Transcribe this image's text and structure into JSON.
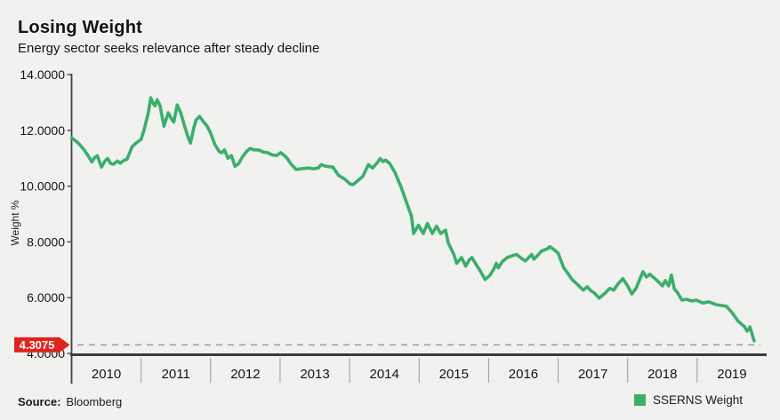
{
  "header": {
    "title": "Losing Weight",
    "subtitle": "Energy sector seeks relevance after steady decline"
  },
  "footer": {
    "source_label": "Source:",
    "source_value": "Bloomberg"
  },
  "legend": {
    "label": "SSERNS Weight",
    "swatch_color": "#3bae6c"
  },
  "colors": {
    "background": "#f1f1f0",
    "line": "#3bae6c",
    "badge": "#e0231e",
    "badge_text": "#ffffff",
    "axis": "#404040",
    "x_axis": "#3b3b3b",
    "text": "#141414",
    "separator": "#999999",
    "dashed": "#9b9b9b"
  },
  "chart_data": {
    "type": "line",
    "title": "Losing Weight",
    "subtitle": "Energy sector seeks relevance after steady decline",
    "ylabel": "Weight %",
    "ylim": [
      4,
      14
    ],
    "yticks": [
      {
        "value": 14,
        "label": "14.0000"
      },
      {
        "value": 12,
        "label": "12.0000"
      },
      {
        "value": 10,
        "label": "10.0000"
      },
      {
        "value": 8,
        "label": "8.0000"
      },
      {
        "value": 6,
        "label": "6.0000"
      },
      {
        "value": 4,
        "label": "4.0000"
      }
    ],
    "xlim": [
      2010,
      2020
    ],
    "xticks": [
      "2010",
      "2011",
      "2012",
      "2013",
      "2014",
      "2015",
      "2016",
      "2017",
      "2018",
      "2019"
    ],
    "grid": false,
    "legend_position": "bottom-right",
    "last_value": {
      "value": 4.3075,
      "label": "4.3075"
    },
    "series": [
      {
        "name": "SSERNS Weight",
        "color": "#3bae6c",
        "points": [
          [
            2010.0,
            11.73
          ],
          [
            2010.06,
            11.62
          ],
          [
            2010.12,
            11.48
          ],
          [
            2010.18,
            11.3
          ],
          [
            2010.24,
            11.08
          ],
          [
            2010.29,
            10.87
          ],
          [
            2010.33,
            11.02
          ],
          [
            2010.37,
            11.09
          ],
          [
            2010.43,
            10.68
          ],
          [
            2010.48,
            10.9
          ],
          [
            2010.52,
            10.99
          ],
          [
            2010.56,
            10.82
          ],
          [
            2010.6,
            10.78
          ],
          [
            2010.66,
            10.9
          ],
          [
            2010.7,
            10.82
          ],
          [
            2010.74,
            10.9
          ],
          [
            2010.8,
            10.97
          ],
          [
            2010.87,
            11.41
          ],
          [
            2010.93,
            11.55
          ],
          [
            2011.0,
            11.68
          ],
          [
            2011.04,
            12.0
          ],
          [
            2011.1,
            12.59
          ],
          [
            2011.14,
            13.17
          ],
          [
            2011.17,
            12.98
          ],
          [
            2011.2,
            12.88
          ],
          [
            2011.23,
            13.1
          ],
          [
            2011.27,
            12.9
          ],
          [
            2011.33,
            12.15
          ],
          [
            2011.39,
            12.63
          ],
          [
            2011.44,
            12.4
          ],
          [
            2011.47,
            12.3
          ],
          [
            2011.52,
            12.91
          ],
          [
            2011.57,
            12.63
          ],
          [
            2011.62,
            12.2
          ],
          [
            2011.67,
            11.8
          ],
          [
            2011.71,
            11.54
          ],
          [
            2011.76,
            12.1
          ],
          [
            2011.79,
            12.37
          ],
          [
            2011.84,
            12.5
          ],
          [
            2011.9,
            12.3
          ],
          [
            2011.95,
            12.15
          ],
          [
            2012.0,
            11.9
          ],
          [
            2012.06,
            11.5
          ],
          [
            2012.12,
            11.25
          ],
          [
            2012.16,
            11.19
          ],
          [
            2012.2,
            11.3
          ],
          [
            2012.25,
            11.0
          ],
          [
            2012.3,
            11.1
          ],
          [
            2012.35,
            10.71
          ],
          [
            2012.4,
            10.8
          ],
          [
            2012.46,
            11.05
          ],
          [
            2012.52,
            11.25
          ],
          [
            2012.57,
            11.35
          ],
          [
            2012.63,
            11.3
          ],
          [
            2012.69,
            11.3
          ],
          [
            2012.76,
            11.22
          ],
          [
            2012.82,
            11.2
          ],
          [
            2012.88,
            11.12
          ],
          [
            2012.95,
            11.1
          ],
          [
            2013.01,
            11.2
          ],
          [
            2013.06,
            11.1
          ],
          [
            2013.1,
            11.0
          ],
          [
            2013.16,
            10.78
          ],
          [
            2013.23,
            10.6
          ],
          [
            2013.3,
            10.62
          ],
          [
            2013.4,
            10.65
          ],
          [
            2013.48,
            10.62
          ],
          [
            2013.55,
            10.65
          ],
          [
            2013.59,
            10.77
          ],
          [
            2013.65,
            10.72
          ],
          [
            2013.69,
            10.7
          ],
          [
            2013.76,
            10.68
          ],
          [
            2013.84,
            10.39
          ],
          [
            2013.93,
            10.25
          ],
          [
            2014.01,
            10.07
          ],
          [
            2014.05,
            10.05
          ],
          [
            2014.12,
            10.2
          ],
          [
            2014.19,
            10.35
          ],
          [
            2014.27,
            10.77
          ],
          [
            2014.33,
            10.65
          ],
          [
            2014.4,
            10.85
          ],
          [
            2014.44,
            10.99
          ],
          [
            2014.48,
            10.88
          ],
          [
            2014.52,
            10.93
          ],
          [
            2014.58,
            10.8
          ],
          [
            2014.65,
            10.5
          ],
          [
            2014.74,
            9.97
          ],
          [
            2014.83,
            9.33
          ],
          [
            2014.89,
            8.92
          ],
          [
            2014.92,
            8.3
          ],
          [
            2014.99,
            8.6
          ],
          [
            2015.06,
            8.3
          ],
          [
            2015.12,
            8.66
          ],
          [
            2015.19,
            8.3
          ],
          [
            2015.25,
            8.56
          ],
          [
            2015.31,
            8.3
          ],
          [
            2015.38,
            8.42
          ],
          [
            2015.42,
            7.96
          ],
          [
            2015.5,
            7.55
          ],
          [
            2015.54,
            7.23
          ],
          [
            2015.61,
            7.44
          ],
          [
            2015.67,
            7.13
          ],
          [
            2015.72,
            7.35
          ],
          [
            2015.76,
            7.44
          ],
          [
            2015.82,
            7.19
          ],
          [
            2015.89,
            6.91
          ],
          [
            2015.95,
            6.65
          ],
          [
            2016.02,
            6.81
          ],
          [
            2016.08,
            7.05
          ],
          [
            2016.11,
            7.23
          ],
          [
            2016.14,
            7.07
          ],
          [
            2016.2,
            7.3
          ],
          [
            2016.27,
            7.44
          ],
          [
            2016.34,
            7.5
          ],
          [
            2016.4,
            7.55
          ],
          [
            2016.49,
            7.38
          ],
          [
            2016.53,
            7.32
          ],
          [
            2016.62,
            7.55
          ],
          [
            2016.65,
            7.38
          ],
          [
            2016.7,
            7.5
          ],
          [
            2016.76,
            7.67
          ],
          [
            2016.85,
            7.76
          ],
          [
            2016.88,
            7.83
          ],
          [
            2016.94,
            7.72
          ],
          [
            2017.0,
            7.6
          ],
          [
            2017.08,
            7.07
          ],
          [
            2017.14,
            6.87
          ],
          [
            2017.2,
            6.65
          ],
          [
            2017.27,
            6.49
          ],
          [
            2017.36,
            6.27
          ],
          [
            2017.42,
            6.39
          ],
          [
            2017.47,
            6.25
          ],
          [
            2017.52,
            6.17
          ],
          [
            2017.59,
            5.98
          ],
          [
            2017.68,
            6.17
          ],
          [
            2017.74,
            6.33
          ],
          [
            2017.8,
            6.27
          ],
          [
            2017.86,
            6.49
          ],
          [
            2017.93,
            6.68
          ],
          [
            2018.0,
            6.42
          ],
          [
            2018.06,
            6.13
          ],
          [
            2018.12,
            6.33
          ],
          [
            2018.22,
            6.93
          ],
          [
            2018.27,
            6.74
          ],
          [
            2018.32,
            6.84
          ],
          [
            2018.38,
            6.71
          ],
          [
            2018.45,
            6.55
          ],
          [
            2018.5,
            6.42
          ],
          [
            2018.54,
            6.61
          ],
          [
            2018.59,
            6.42
          ],
          [
            2018.63,
            6.81
          ],
          [
            2018.67,
            6.32
          ],
          [
            2018.72,
            6.17
          ],
          [
            2018.78,
            5.91
          ],
          [
            2018.85,
            5.94
          ],
          [
            2018.92,
            5.88
          ],
          [
            2018.99,
            5.91
          ],
          [
            2019.08,
            5.81
          ],
          [
            2019.17,
            5.85
          ],
          [
            2019.27,
            5.75
          ],
          [
            2019.35,
            5.72
          ],
          [
            2019.42,
            5.69
          ],
          [
            2019.5,
            5.47
          ],
          [
            2019.59,
            5.15
          ],
          [
            2019.68,
            4.96
          ],
          [
            2019.72,
            4.8
          ],
          [
            2019.76,
            4.95
          ],
          [
            2019.82,
            4.45
          ]
        ]
      }
    ]
  }
}
